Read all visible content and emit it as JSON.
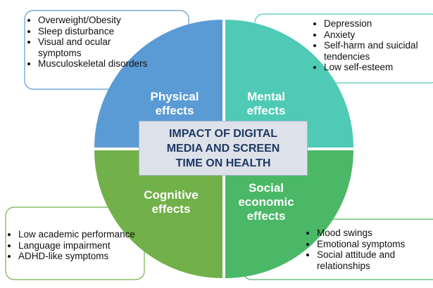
{
  "center_title": "IMPACT OF DIGITAL MEDIA AND SCREEN TIME ON HEALTH",
  "quadrants": [
    {
      "label": "Physical effects",
      "items": [
        "Overweight/Obesity",
        "Sleep disturbance",
        "Visual and ocular symptoms",
        "Musculoskeletal disorders"
      ]
    },
    {
      "label": "Mental effects",
      "items": [
        "Depression",
        "Anxiety",
        "Self-harm and suicidal tendencies",
        "Low self-esteem"
      ]
    },
    {
      "label": "Cognitive effects",
      "items": [
        "Low academic performance",
        "Language impairment",
        "ADHD-like symptoms"
      ]
    },
    {
      "label": "Social economic effects",
      "items": [
        "Mood swings",
        "Emotional symptoms",
        "Social attitude and relationships"
      ]
    }
  ]
}
